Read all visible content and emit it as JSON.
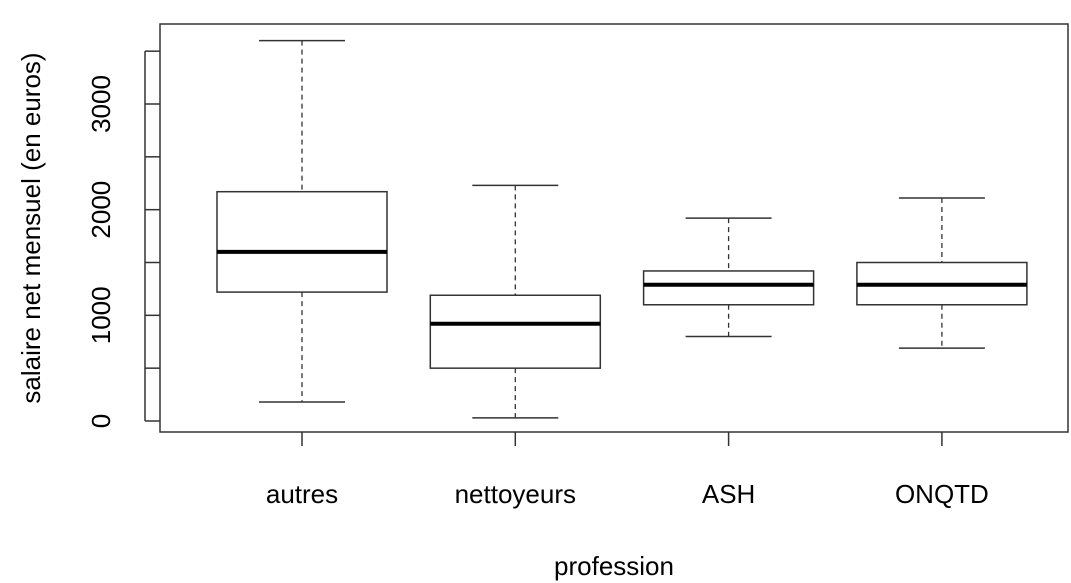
{
  "chart_data": {
    "type": "boxplot",
    "title": "",
    "xlabel": "profession",
    "ylabel": "salaire net mensuel (en euros)",
    "categories": [
      "autres",
      "nettoyeurs",
      "ASH",
      "ONQTD"
    ],
    "boxes": [
      {
        "category": "autres",
        "whisker_low": 180,
        "q1": 1220,
        "median": 1600,
        "q3": 2170,
        "whisker_high": 3600
      },
      {
        "category": "nettoyeurs",
        "whisker_low": 30,
        "q1": 500,
        "median": 920,
        "q3": 1190,
        "whisker_high": 2230
      },
      {
        "category": "ASH",
        "whisker_low": 800,
        "q1": 1100,
        "median": 1290,
        "q3": 1420,
        "whisker_high": 1920
      },
      {
        "category": "ONQTD",
        "whisker_low": 690,
        "q1": 1100,
        "median": 1290,
        "q3": 1500,
        "whisker_high": 2110
      }
    ],
    "yticks": [
      0,
      1000,
      2000,
      3000
    ],
    "ylim": [
      -100,
      3750
    ],
    "grid": false,
    "legend": "none"
  }
}
